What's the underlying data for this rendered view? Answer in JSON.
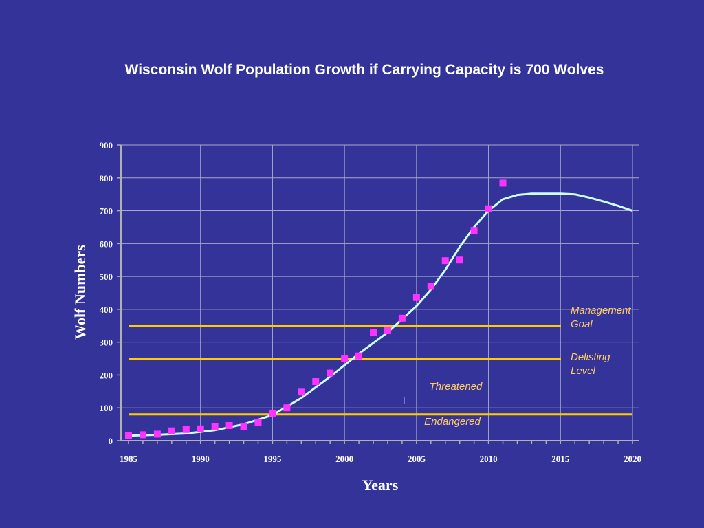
{
  "chart_data": {
    "type": "scatter",
    "title": "Wisconsin Wolf Population Growth if Carrying Capacity is 700 Wolves",
    "xlabel": "Years",
    "ylabel": "Wolf Numbers",
    "xlim": [
      1985,
      2020
    ],
    "ylim": [
      0,
      900
    ],
    "x_ticks": [
      1985,
      1990,
      1995,
      2000,
      2005,
      2010,
      2015,
      2020
    ],
    "y_ticks": [
      0,
      100,
      200,
      300,
      400,
      500,
      600,
      700,
      800,
      900
    ],
    "grid": true,
    "series": [
      {
        "type": "scatter",
        "color": "#ff33ff",
        "x": [
          1985,
          1986,
          1987,
          1988,
          1989,
          1990,
          1991,
          1992,
          1993,
          1994,
          1995,
          1996,
          1997,
          1998,
          1999,
          2000,
          2001,
          2002,
          2003,
          2004,
          2005,
          2006,
          2007,
          2008,
          2009,
          2010,
          2011
        ],
        "y": [
          15,
          18,
          20,
          30,
          34,
          36,
          42,
          46,
          42,
          56,
          84,
          100,
          148,
          180,
          206,
          250,
          258,
          330,
          335,
          373,
          436,
          470,
          548,
          550,
          640,
          706,
          784
        ]
      },
      {
        "type": "line",
        "color": "#ccffff",
        "x": [
          1985,
          1987,
          1989,
          1991,
          1993,
          1995,
          1997,
          1999,
          2001,
          2003,
          2004,
          2005,
          2006,
          2007,
          2008,
          2009,
          2010,
          2011,
          2012,
          2013,
          2014,
          2015,
          2016,
          2017,
          2018,
          2019,
          2020
        ],
        "y": [
          15,
          18,
          22,
          32,
          50,
          78,
          130,
          195,
          265,
          330,
          370,
          410,
          460,
          520,
          590,
          650,
          700,
          735,
          748,
          752,
          752,
          752,
          750,
          740,
          728,
          715,
          700
        ]
      }
    ],
    "reference_lines": [
      {
        "y": 350,
        "color": "#ffcc00",
        "label_line1": "Management",
        "label_line2": "Goal"
      },
      {
        "y": 250,
        "color": "#ffcc00",
        "label_line1": "Delisting",
        "label_line2": "Level"
      },
      {
        "y": 80,
        "color": "#ffcc00",
        "label_line1": "Endangered",
        "label_line2": ""
      }
    ],
    "region_label": "Threatened"
  }
}
